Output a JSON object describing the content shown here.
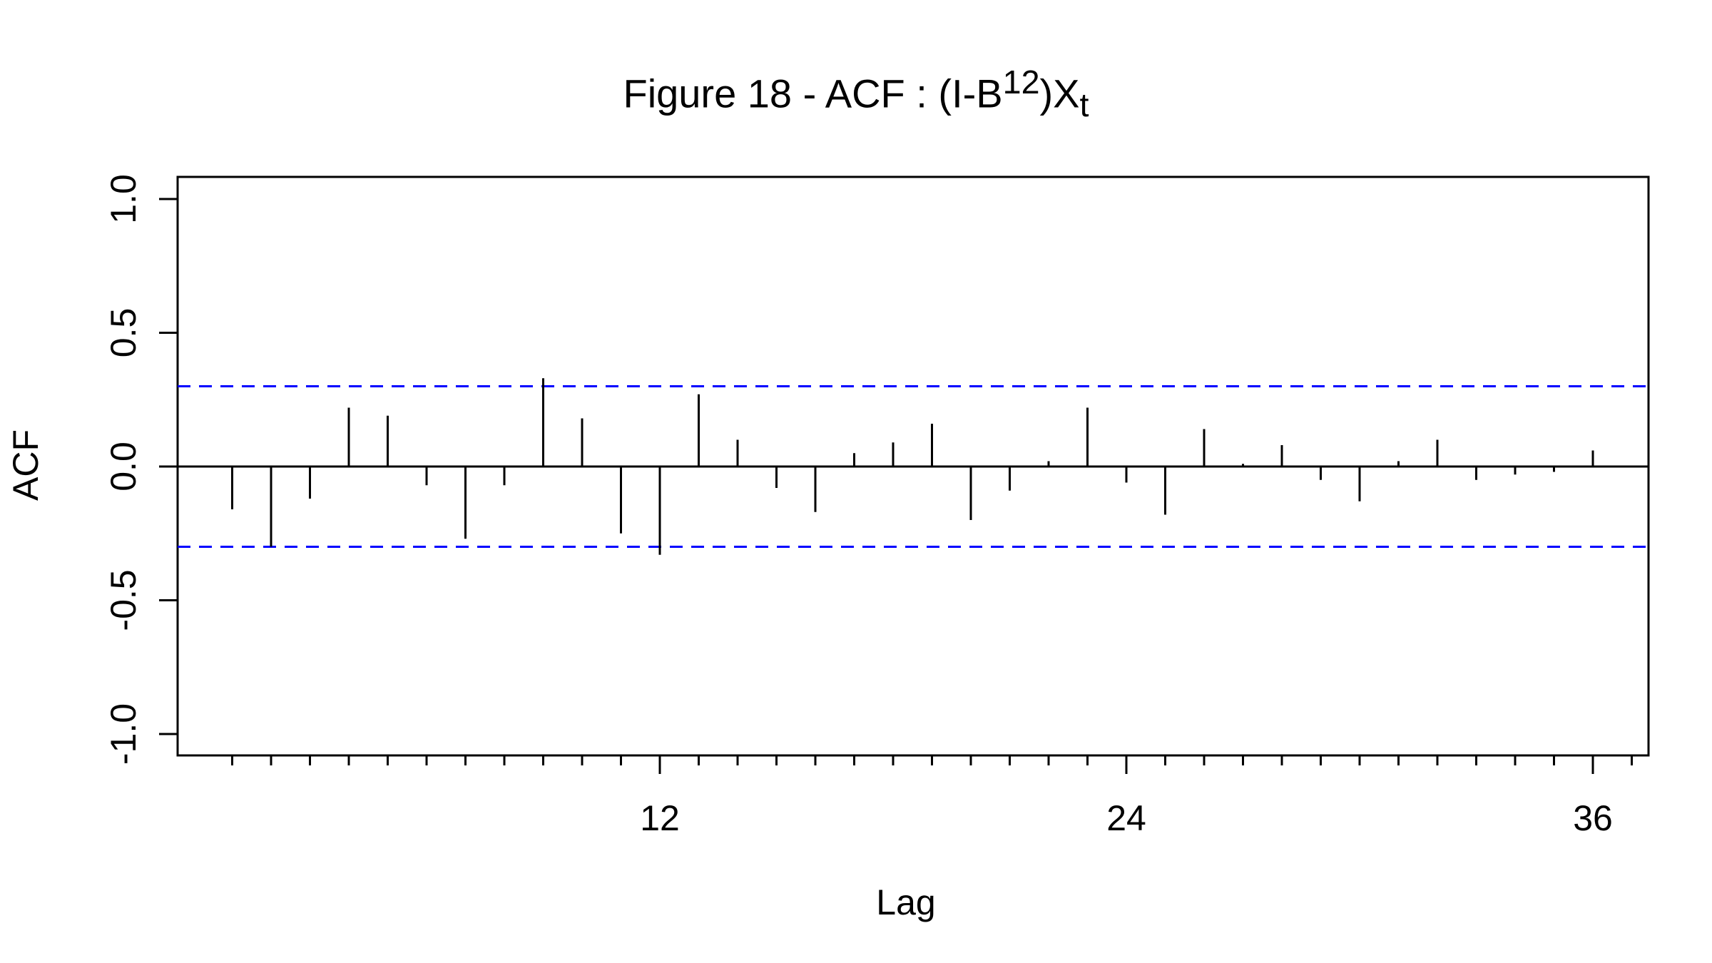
{
  "chart_data": {
    "type": "bar",
    "title": {
      "main": "Figure 18 - ACF : (I-B",
      "superscript": "12",
      "after": ")X",
      "subscript": "t"
    },
    "xlabel": "Lag",
    "ylabel": "ACF",
    "xlim": [
      0,
      37
    ],
    "ylim": [
      -1.0,
      1.0
    ],
    "x_ticks": [
      1,
      2,
      3,
      4,
      5,
      6,
      7,
      8,
      9,
      10,
      11,
      12,
      13,
      14,
      15,
      16,
      17,
      18,
      19,
      20,
      21,
      22,
      23,
      24,
      25,
      26,
      27,
      28,
      29,
      30,
      31,
      32,
      33,
      34,
      35,
      36,
      37
    ],
    "x_tick_labels": [
      {
        "lag": 12,
        "label": "12"
      },
      {
        "lag": 24,
        "label": "24"
      },
      {
        "lag": 36,
        "label": "36"
      }
    ],
    "y_ticks": [
      {
        "value": 1.0,
        "label": "1.0"
      },
      {
        "value": 0.5,
        "label": "0.5"
      },
      {
        "value": 0.0,
        "label": "0.0"
      },
      {
        "value": -0.5,
        "label": "-0.5"
      },
      {
        "value": -1.0,
        "label": "-1.0"
      }
    ],
    "confidence_bounds": [
      0.3,
      -0.3
    ],
    "confidence_color": "#0000ff",
    "bar_color": "#000000",
    "lags": [
      1,
      2,
      3,
      4,
      5,
      6,
      7,
      8,
      9,
      10,
      11,
      12,
      13,
      14,
      15,
      16,
      17,
      18,
      19,
      20,
      21,
      22,
      23,
      24,
      25,
      26,
      27,
      28,
      29,
      30,
      31,
      32,
      33,
      34,
      35,
      36
    ],
    "values": [
      -0.16,
      -0.3,
      -0.12,
      0.22,
      0.19,
      -0.07,
      -0.27,
      -0.07,
      0.33,
      0.18,
      -0.25,
      -0.33,
      0.27,
      0.1,
      -0.08,
      -0.17,
      0.05,
      0.09,
      0.16,
      -0.2,
      -0.09,
      0.02,
      0.22,
      -0.06,
      -0.18,
      0.14,
      0.01,
      0.08,
      -0.05,
      -0.13,
      0.02,
      0.1,
      -0.05,
      -0.03,
      -0.02,
      0.06
    ]
  }
}
